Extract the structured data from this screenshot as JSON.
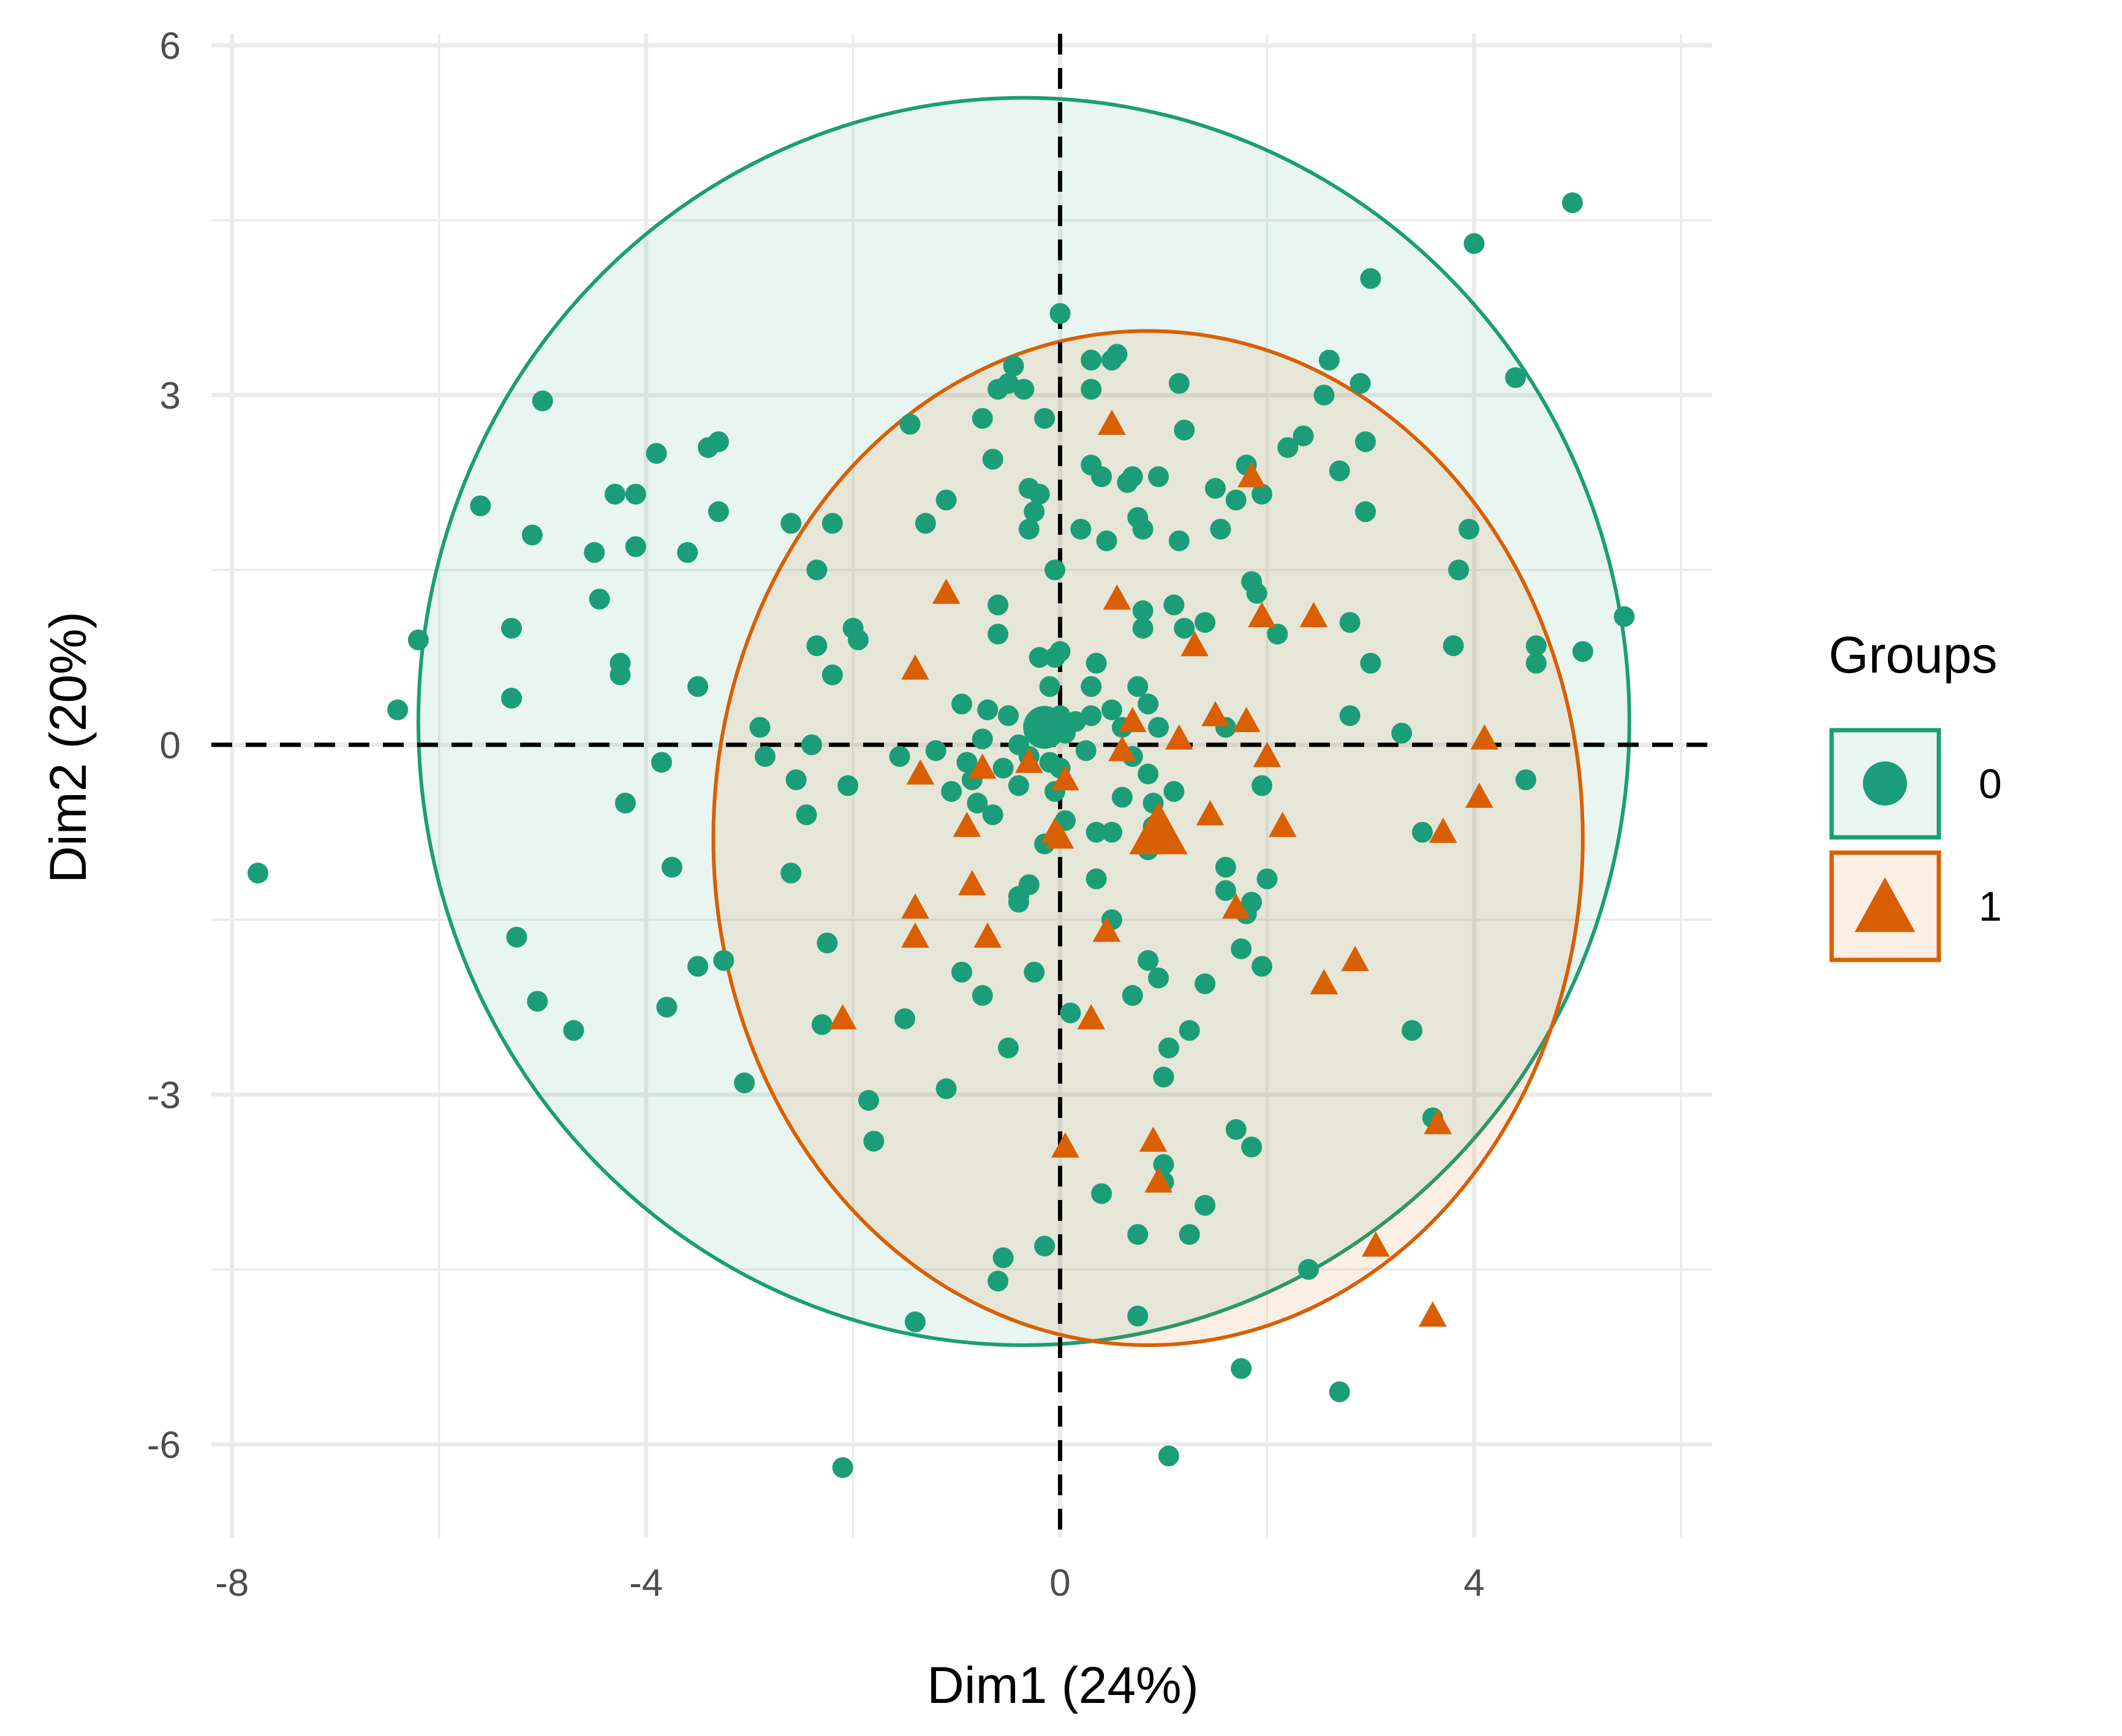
{
  "chart_data": {
    "type": "scatter",
    "title": "",
    "xlabel": "Dim1 (24%)",
    "ylabel": "Dim2 (20%)",
    "xlim": [
      -8.2,
      6.3
    ],
    "ylim": [
      -6.8,
      6.1
    ],
    "x_ticks": [
      -8,
      -4,
      0,
      4
    ],
    "x_tick_labels": [
      "-8",
      "-4",
      "0",
      "4"
    ],
    "y_ticks": [
      -6,
      -3,
      0,
      3,
      6
    ],
    "y_tick_labels": [
      "-6",
      "-3",
      "0",
      "3",
      "6"
    ],
    "grid": true,
    "reference_lines": {
      "x": 0,
      "y": 0,
      "style": "dashed"
    },
    "legend": {
      "title": "Groups",
      "position": "right"
    },
    "series": [
      {
        "name": "0",
        "marker": "circle",
        "color": "#1b9e77",
        "centroid": [
          -0.15,
          0.15
        ],
        "ellipse": {
          "cx": -0.35,
          "cy": 0.2,
          "rx": 5.85,
          "ry": 5.35
        },
        "points": [
          [
            -7.75,
            -1.1
          ],
          [
            -6.4,
            0.3
          ],
          [
            -6.2,
            0.9
          ],
          [
            -5.6,
            2.05
          ],
          [
            -5.3,
            1.0
          ],
          [
            -5.3,
            0.4
          ],
          [
            -5.25,
            -1.65
          ],
          [
            -5.1,
            1.8
          ],
          [
            -5.05,
            -2.2
          ],
          [
            -5.0,
            2.95
          ],
          [
            -4.7,
            -2.45
          ],
          [
            -4.5,
            1.65
          ],
          [
            -4.45,
            1.25
          ],
          [
            -4.3,
            2.15
          ],
          [
            -4.25,
            0.7
          ],
          [
            -4.25,
            0.6
          ],
          [
            -4.2,
            -0.5
          ],
          [
            -4.1,
            2.15
          ],
          [
            -4.1,
            1.7
          ],
          [
            -3.9,
            2.5
          ],
          [
            -3.85,
            -0.15
          ],
          [
            -3.8,
            -2.25
          ],
          [
            -3.75,
            -1.05
          ],
          [
            -3.6,
            1.65
          ],
          [
            -3.5,
            -1.9
          ],
          [
            -3.5,
            0.5
          ],
          [
            -3.4,
            2.55
          ],
          [
            -3.3,
            2.6
          ],
          [
            -3.3,
            2.0
          ],
          [
            -3.25,
            -1.85
          ],
          [
            -3.05,
            -2.9
          ],
          [
            -2.9,
            0.15
          ],
          [
            -2.85,
            -0.1
          ],
          [
            -2.6,
            1.9
          ],
          [
            -2.6,
            -1.1
          ],
          [
            -2.55,
            -0.3
          ],
          [
            -2.45,
            -0.6
          ],
          [
            -2.4,
            0.0
          ],
          [
            -2.35,
            1.5
          ],
          [
            -2.35,
            0.85
          ],
          [
            -2.3,
            -2.4
          ],
          [
            -2.25,
            -1.7
          ],
          [
            -2.2,
            1.9
          ],
          [
            -2.2,
            0.6
          ],
          [
            -2.1,
            -6.2
          ],
          [
            -2.05,
            -0.35
          ],
          [
            -2.0,
            1.0
          ],
          [
            -1.95,
            0.9
          ],
          [
            -1.85,
            -3.05
          ],
          [
            -1.8,
            -3.4
          ],
          [
            -1.55,
            -0.1
          ],
          [
            -1.5,
            -2.35
          ],
          [
            -1.45,
            2.75
          ],
          [
            -1.4,
            -4.95
          ],
          [
            -1.3,
            1.9
          ],
          [
            -1.2,
            -0.05
          ],
          [
            -1.1,
            2.1
          ],
          [
            -1.1,
            -2.95
          ],
          [
            -1.05,
            -0.4
          ],
          [
            -0.95,
            0.35
          ],
          [
            -0.95,
            -1.95
          ],
          [
            -0.9,
            -0.15
          ],
          [
            -0.85,
            -0.3
          ],
          [
            -0.8,
            -0.5
          ],
          [
            -0.75,
            2.8
          ],
          [
            -0.75,
            0.05
          ],
          [
            -0.75,
            -2.15
          ],
          [
            -0.7,
            0.3
          ],
          [
            -0.65,
            2.45
          ],
          [
            -0.65,
            -0.6
          ],
          [
            -0.6,
            3.05
          ],
          [
            -0.6,
            1.2
          ],
          [
            -0.6,
            0.95
          ],
          [
            -0.6,
            -4.6
          ],
          [
            -0.55,
            -0.2
          ],
          [
            -0.55,
            -4.4
          ],
          [
            -0.5,
            3.1
          ],
          [
            -0.5,
            0.25
          ],
          [
            -0.5,
            -2.6
          ],
          [
            -0.45,
            3.25
          ],
          [
            -0.4,
            0.0
          ],
          [
            -0.4,
            -0.35
          ],
          [
            -0.4,
            -1.3
          ],
          [
            -0.4,
            -1.35
          ],
          [
            -0.35,
            3.05
          ],
          [
            -0.3,
            2.2
          ],
          [
            -0.3,
            1.85
          ],
          [
            -0.3,
            -1.2
          ],
          [
            -0.3,
            -0.1
          ],
          [
            -0.25,
            2.0
          ],
          [
            -0.25,
            -1.95
          ],
          [
            -0.2,
            2.15
          ],
          [
            -0.2,
            0.75
          ],
          [
            -0.15,
            2.8
          ],
          [
            -0.15,
            0.1
          ],
          [
            -0.15,
            -0.85
          ],
          [
            -0.15,
            -4.3
          ],
          [
            -0.1,
            0.5
          ],
          [
            -0.1,
            -0.15
          ],
          [
            -0.05,
            1.5
          ],
          [
            -0.05,
            0.75
          ],
          [
            -0.05,
            -0.4
          ],
          [
            0.0,
            3.7
          ],
          [
            0.0,
            0.8
          ],
          [
            0.0,
            0.25
          ],
          [
            0.0,
            -0.2
          ],
          [
            0.05,
            0.1
          ],
          [
            0.05,
            -0.65
          ],
          [
            0.1,
            -2.3
          ],
          [
            0.15,
            0.2
          ],
          [
            0.2,
            1.85
          ],
          [
            0.25,
            -0.05
          ],
          [
            0.3,
            3.3
          ],
          [
            0.3,
            3.05
          ],
          [
            0.3,
            2.4
          ],
          [
            0.3,
            0.5
          ],
          [
            0.3,
            0.25
          ],
          [
            0.35,
            0.7
          ],
          [
            0.35,
            -1.15
          ],
          [
            0.35,
            -0.75
          ],
          [
            0.4,
            2.3
          ],
          [
            0.4,
            -3.85
          ],
          [
            0.45,
            1.75
          ],
          [
            0.5,
            3.3
          ],
          [
            0.5,
            0.3
          ],
          [
            0.5,
            -0.75
          ],
          [
            0.5,
            -1.5
          ],
          [
            0.55,
            3.35
          ],
          [
            0.6,
            0.15
          ],
          [
            0.6,
            -0.45
          ],
          [
            0.65,
            2.25
          ],
          [
            0.7,
            2.3
          ],
          [
            0.7,
            -2.15
          ],
          [
            0.7,
            -0.1
          ],
          [
            0.75,
            1.95
          ],
          [
            0.75,
            0.5
          ],
          [
            0.75,
            -4.2
          ],
          [
            0.75,
            -4.9
          ],
          [
            0.8,
            1.85
          ],
          [
            0.8,
            1.15
          ],
          [
            0.8,
            1.0
          ],
          [
            0.85,
            0.35
          ],
          [
            0.85,
            -0.25
          ],
          [
            0.85,
            -0.9
          ],
          [
            0.85,
            -1.85
          ],
          [
            0.9,
            -0.5
          ],
          [
            0.9,
            -0.7
          ],
          [
            0.95,
            2.3
          ],
          [
            0.95,
            -2.0
          ],
          [
            0.95,
            0.15
          ],
          [
            1.0,
            -2.85
          ],
          [
            1.0,
            -3.6
          ],
          [
            1.0,
            -3.75
          ],
          [
            1.05,
            -2.6
          ],
          [
            1.05,
            -6.1
          ],
          [
            1.1,
            1.2
          ],
          [
            1.1,
            -0.4
          ],
          [
            1.15,
            3.1
          ],
          [
            1.15,
            1.75
          ],
          [
            1.2,
            2.7
          ],
          [
            1.2,
            1.0
          ],
          [
            1.25,
            -4.2
          ],
          [
            1.25,
            -2.45
          ],
          [
            1.4,
            1.05
          ],
          [
            1.4,
            -2.05
          ],
          [
            1.4,
            -3.95
          ],
          [
            1.5,
            2.2
          ],
          [
            1.55,
            1.85
          ],
          [
            1.6,
            -1.05
          ],
          [
            1.6,
            -1.25
          ],
          [
            1.6,
            0.15
          ],
          [
            1.7,
            2.1
          ],
          [
            1.7,
            -3.3
          ],
          [
            1.75,
            -5.35
          ],
          [
            1.75,
            -1.75
          ],
          [
            1.8,
            -1.45
          ],
          [
            1.8,
            2.4
          ],
          [
            1.85,
            1.4
          ],
          [
            1.85,
            -1.35
          ],
          [
            1.85,
            -3.45
          ],
          [
            1.9,
            1.3
          ],
          [
            1.95,
            -0.35
          ],
          [
            1.95,
            2.15
          ],
          [
            1.95,
            -1.9
          ],
          [
            2.0,
            -1.15
          ],
          [
            2.1,
            0.95
          ],
          [
            2.2,
            2.55
          ],
          [
            2.35,
            2.65
          ],
          [
            2.4,
            -4.5
          ],
          [
            2.55,
            3.0
          ],
          [
            2.6,
            3.3
          ],
          [
            2.7,
            2.35
          ],
          [
            2.7,
            -5.55
          ],
          [
            2.8,
            1.05
          ],
          [
            2.8,
            0.25
          ],
          [
            2.9,
            3.1
          ],
          [
            2.95,
            2.6
          ],
          [
            2.95,
            2.0
          ],
          [
            3.0,
            4.0
          ],
          [
            3.0,
            0.7
          ],
          [
            3.3,
            0.1
          ],
          [
            3.4,
            -2.45
          ],
          [
            3.5,
            -0.75
          ],
          [
            3.6,
            -3.2
          ],
          [
            3.8,
            0.85
          ],
          [
            3.85,
            1.5
          ],
          [
            3.95,
            1.85
          ],
          [
            4.0,
            4.3
          ],
          [
            4.4,
            3.15
          ],
          [
            4.5,
            -0.3
          ],
          [
            4.6,
            0.85
          ],
          [
            4.6,
            0.7
          ],
          [
            4.95,
            4.65
          ],
          [
            5.05,
            0.8
          ],
          [
            5.45,
            1.1
          ]
        ]
      },
      {
        "name": "1",
        "marker": "triangle",
        "color": "#d95f02",
        "centroid": [
          0.95,
          -0.75
        ],
        "ellipse": {
          "cx": 0.85,
          "cy": -0.8,
          "rx": 4.2,
          "ry": 4.35
        },
        "points": [
          [
            -2.1,
            -2.35
          ],
          [
            -1.4,
            -1.4
          ],
          [
            -1.4,
            -1.65
          ],
          [
            -1.4,
            0.65
          ],
          [
            -1.35,
            -0.25
          ],
          [
            -1.1,
            1.3
          ],
          [
            -0.9,
            -0.7
          ],
          [
            -0.85,
            -1.2
          ],
          [
            -0.75,
            -0.2
          ],
          [
            -0.7,
            -1.65
          ],
          [
            -0.3,
            -0.15
          ],
          [
            -0.05,
            -0.75
          ],
          [
            0.0,
            -0.8
          ],
          [
            0.05,
            -0.3
          ],
          [
            0.05,
            -3.45
          ],
          [
            0.3,
            -2.35
          ],
          [
            0.45,
            -1.6
          ],
          [
            0.5,
            2.75
          ],
          [
            0.55,
            1.25
          ],
          [
            0.6,
            -0.05
          ],
          [
            0.7,
            0.2
          ],
          [
            0.9,
            -3.4
          ],
          [
            0.95,
            -3.75
          ],
          [
            1.15,
            0.05
          ],
          [
            1.3,
            0.85
          ],
          [
            1.45,
            -0.6
          ],
          [
            1.5,
            0.25
          ],
          [
            1.7,
            -1.4
          ],
          [
            1.8,
            0.2
          ],
          [
            1.85,
            2.3
          ],
          [
            1.95,
            1.1
          ],
          [
            2.0,
            -0.1
          ],
          [
            2.15,
            -0.7
          ],
          [
            2.45,
            1.1
          ],
          [
            2.55,
            -2.05
          ],
          [
            2.85,
            -1.85
          ],
          [
            3.05,
            -4.3
          ],
          [
            3.6,
            -4.9
          ],
          [
            3.65,
            -3.25
          ],
          [
            3.7,
            -0.75
          ],
          [
            4.05,
            -0.45
          ],
          [
            4.1,
            0.05
          ]
        ]
      }
    ]
  }
}
